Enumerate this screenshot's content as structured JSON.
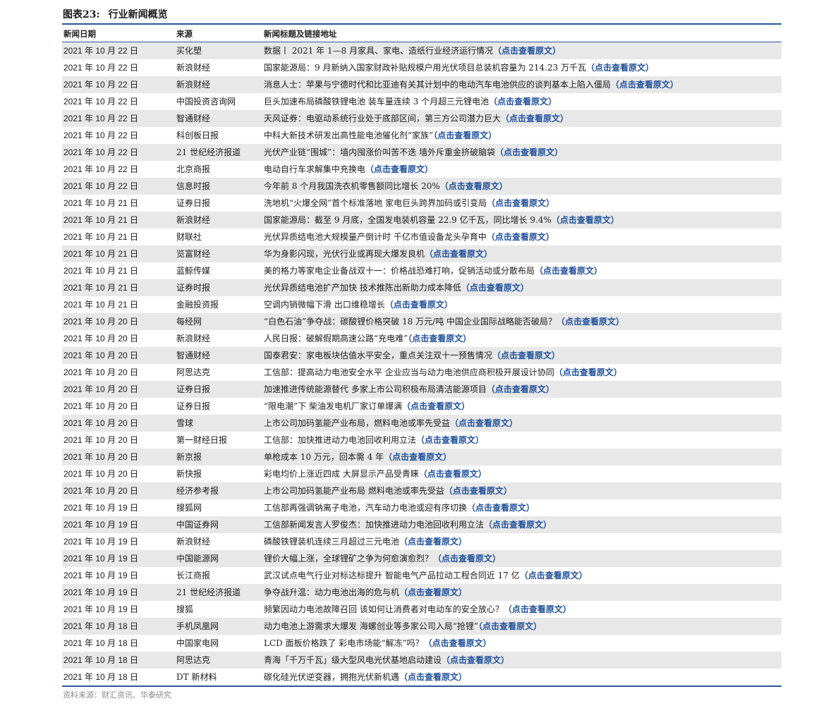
{
  "figure": {
    "number": "图表23:",
    "title": "行业新闻概览"
  },
  "columns": [
    "新闻日期",
    "来源",
    "新闻标题及链接地址"
  ],
  "link_text": "（点击查看原文）",
  "rows": [
    {
      "date": "2021 年 10 月 22 日",
      "source": "买化塑",
      "title": "数据丨 2021 年 1—8 月家具、家电、造纸行业经济运行情况"
    },
    {
      "date": "2021 年 10 月 22 日",
      "source": "新浪财经",
      "title": "国家能源局：9 月新纳入国家财政补贴规模户用光伏项目总装机容量为 214.23 万千瓦"
    },
    {
      "date": "2021 年 10 月 22 日",
      "source": "新浪财经",
      "title": "消息人士：苹果与宁德时代和比亚迪有关其计划中的电动汽车电池供应的谈判基本上陷入僵局"
    },
    {
      "date": "2021 年 10 月 22 日",
      "source": "中国投资咨询网",
      "title": "巨头加速布局磷酸铁锂电池 装车量连续 3 个月超三元锂电池"
    },
    {
      "date": "2021 年 10 月 22 日",
      "source": "智通财经",
      "title": "天风证券：电驱动系统行业处于底部区间，第三方公司潜力巨大"
    },
    {
      "date": "2021 年 10 月 22 日",
      "source": "科创板日报",
      "title": "中科大新技术研发出高性能电池催化剂“家族”"
    },
    {
      "date": "2021 年 10 月 22 日",
      "source": "21 世纪经济报道",
      "title": "光伏产业链“围城”：墙内囤涨价叫苦不迭 墙外斥重金挤破脑袋"
    },
    {
      "date": "2021 年 10 月 22 日",
      "source": "北京商报",
      "title": "电动自行车求解集中充换电"
    },
    {
      "date": "2021 年 10 月 22 日",
      "source": "信息时报",
      "title": "今年前 8 个月我国洗衣机零售额同比增长 20%"
    },
    {
      "date": "2021 年 10 月 21 日",
      "source": "证券日报",
      "title": "洗地机“火爆全网”首个标准落地 家电巨头跨界加码或引变局"
    },
    {
      "date": "2021 年 10 月 21 日",
      "source": "新浪财经",
      "title": "国家能源局：截至 9 月底，全国发电装机容量 22.9 亿千瓦，同比增长 9.4%"
    },
    {
      "date": "2021 年 10 月 21 日",
      "source": "财联社",
      "title": "光伏异质结电池大规模量产倒计时 千亿市值设备龙头孕育中"
    },
    {
      "date": "2021 年 10 月 21 日",
      "source": "览富财经",
      "title": "华为身影闪现，光伏行业或再现大爆发良机"
    },
    {
      "date": "2021 年 10 月 21 日",
      "source": "蓝鲸传媒",
      "title": "美的格力等家电企业备战双十一：价格战恐难打响，促销活动或分散布局"
    },
    {
      "date": "2021 年 10 月 21 日",
      "source": "证券时报",
      "title": "光伏异质结电池扩产加快 技术推陈出新助力成本降低"
    },
    {
      "date": "2021 年 10 月 21 日",
      "source": "金融投资报",
      "title": "空调内销微幅下滑 出口维稳增长"
    },
    {
      "date": "2021 年 10 月 20 日",
      "source": "每经网",
      "title": "“白色石油”争夺战：碳酸锂价格突破 18 万元/吨 中国企业国际战略能否破局？"
    },
    {
      "date": "2021 年 10 月 20 日",
      "source": "新浪财经",
      "title": "人民日报：破解假期高速公路“充电难”"
    },
    {
      "date": "2021 年 10 月 20 日",
      "source": "智通财经",
      "title": "国泰君安：家电板块估值水平安全，重点关注双十一预售情况"
    },
    {
      "date": "2021 年 10 月 20 日",
      "source": "阿思达克",
      "title": "工信部：提高动力电池安全水平 企业应当与动力电池供应商积极开展设计协同"
    },
    {
      "date": "2021 年 10 月 20 日",
      "source": "证券日报",
      "title": "加速推进传统能源替代 多家上市公司积极布局清洁能源项目"
    },
    {
      "date": "2021 年 10 月 20 日",
      "source": "证券日报",
      "title": "“限电潮”下 柴油发电机厂家订单爆满"
    },
    {
      "date": "2021 年 10 月 20 日",
      "source": "雪球",
      "title": "上市公司加码氢能产业布局，燃料电池或率先受益"
    },
    {
      "date": "2021 年 10 月 20 日",
      "source": "第一财经日报",
      "title": "工信部：加快推进动力电池回收利用立法"
    },
    {
      "date": "2021 年 10 月 20 日",
      "source": "新京报",
      "title": "单枪成本 10 万元，回本需 4 年"
    },
    {
      "date": "2021 年 10 月 20 日",
      "source": "新快报",
      "title": "彩电均价上涨近四成 大屏显示产品受青睐"
    },
    {
      "date": "2021 年 10 月 20 日",
      "source": "经济参考报",
      "title": "上市公司加码氢能产业布局 燃料电池或率先受益"
    },
    {
      "date": "2021 年 10 月 19 日",
      "source": "搜狐网",
      "title": "工信部再强调钠离子电池，汽车动力电池或迎有序切换"
    },
    {
      "date": "2021 年 10 月 19 日",
      "source": "中国证券网",
      "title": "工信部新闻发言人罗俊杰：加快推进动力电池回收利用立法"
    },
    {
      "date": "2021 年 10 月 19 日",
      "source": "新浪财经",
      "title": "磷酸铁锂装机连续三月超过三元电池"
    },
    {
      "date": "2021 年 10 月 19 日",
      "source": "中国能源网",
      "title": "锂价大幅上涨，全球锂矿之争为何愈演愈烈？"
    },
    {
      "date": "2021 年 10 月 19 日",
      "source": "长江商报",
      "title": "武汉试点电气行业对标达标提升 智能电气产品拉动工程合同近 17 亿"
    },
    {
      "date": "2021 年 10 月 19 日",
      "source": "21 世纪经济报道",
      "title": "争夺战升温：动力电池出海的危与机"
    },
    {
      "date": "2021 年 10 月 19 日",
      "source": "搜狐",
      "title": "频繁因动力电池故障召回 该如何让消费者对电动车的安全放心？"
    },
    {
      "date": "2021 年 10 月 18 日",
      "source": "手机凤凰网",
      "title": "动力电池上游需求大爆发 海螺创业等多家公司入局“抢锂”"
    },
    {
      "date": "2021 年 10 月 18 日",
      "source": "中国家电网",
      "title": "LCD 面板价格跌了 彩电市场能“解冻”吗？"
    },
    {
      "date": "2021 年 10 月 18 日",
      "source": "阿思达克",
      "title": "青海「千万千瓦」级大型风电光伏基地启动建设"
    },
    {
      "date": "2021 年 10 月 18 日",
      "source": "DT 新材料",
      "title": "碳化硅光伏逆变器，拥抱光伏新机遇"
    }
  ],
  "footer": "资料来源：财汇资讯、华泰研究"
}
